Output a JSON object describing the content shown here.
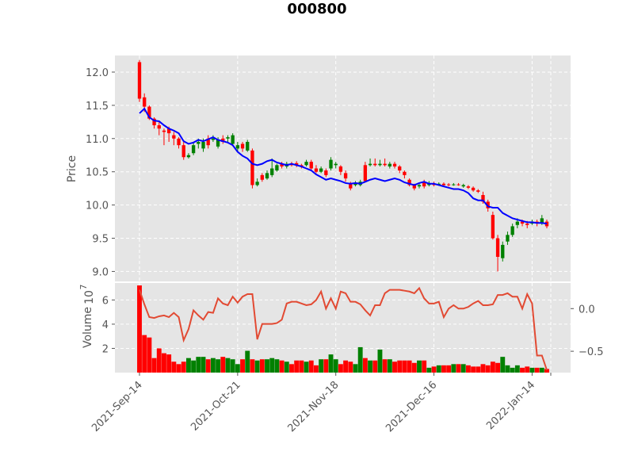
{
  "chart_data": {
    "title": "000800",
    "type": "candlestick",
    "grid": true,
    "price_panel": {
      "ylabel": "Price",
      "ylim": [
        8.85,
        12.25
      ],
      "yticks": [
        9.0,
        9.5,
        10.0,
        10.5,
        11.0,
        11.5,
        12.0
      ],
      "ytick_labels": [
        "9.0",
        "9.5",
        "10.0",
        "10.5",
        "11.0",
        "11.5",
        "12.0"
      ],
      "series": [
        {
          "values": [
            [
              11.6,
              12.15,
              11.55,
              12.18
            ],
            [
              11.48,
              11.62,
              11.4,
              11.68
            ],
            [
              11.3,
              11.48,
              11.28,
              11.5
            ],
            [
              11.2,
              11.3,
              11.15,
              11.32
            ],
            [
              11.15,
              11.2,
              11.05,
              11.25
            ],
            [
              11.1,
              11.12,
              10.9,
              11.15
            ],
            [
              11.08,
              11.15,
              10.95,
              11.18
            ],
            [
              11.0,
              11.05,
              10.9,
              11.1
            ],
            [
              10.9,
              11.0,
              10.85,
              11.02
            ],
            [
              10.72,
              10.9,
              10.68,
              10.95
            ],
            [
              10.75,
              10.72,
              10.7,
              10.78
            ],
            [
              10.9,
              10.78,
              10.75,
              10.95
            ],
            [
              10.95,
              10.92,
              10.85,
              11.0
            ],
            [
              10.95,
              10.85,
              10.8,
              11.0
            ],
            [
              10.9,
              11.0,
              10.85,
              11.05
            ],
            [
              11.0,
              10.98,
              10.95,
              11.05
            ],
            [
              10.98,
              10.88,
              10.85,
              11.02
            ],
            [
              10.95,
              11.0,
              10.92,
              11.05
            ],
            [
              11.02,
              11.0,
              10.95,
              11.05
            ],
            [
              11.05,
              10.92,
              10.9,
              11.08
            ],
            [
              10.9,
              10.85,
              10.8,
              10.95
            ],
            [
              10.85,
              10.92,
              10.8,
              10.95
            ],
            [
              10.95,
              10.82,
              10.8,
              10.98
            ],
            [
              10.3,
              10.82,
              10.25,
              10.85
            ],
            [
              10.35,
              10.3,
              10.28,
              10.4
            ],
            [
              10.38,
              10.45,
              10.35,
              10.48
            ],
            [
              10.48,
              10.4,
              10.38,
              10.52
            ],
            [
              10.55,
              10.45,
              10.42,
              10.7
            ],
            [
              10.6,
              10.52,
              10.5,
              10.62
            ],
            [
              10.58,
              10.62,
              10.55,
              10.65
            ],
            [
              10.62,
              10.58,
              10.55,
              10.65
            ],
            [
              10.6,
              10.62,
              10.58,
              10.65
            ],
            [
              10.6,
              10.63,
              10.57,
              10.66
            ],
            [
              10.58,
              10.6,
              10.55,
              10.62
            ],
            [
              10.65,
              10.6,
              10.58,
              10.68
            ],
            [
              10.55,
              10.65,
              10.52,
              10.68
            ],
            [
              10.5,
              10.55,
              10.48,
              10.6
            ],
            [
              10.55,
              10.5,
              10.48,
              10.58
            ],
            [
              10.45,
              10.52,
              10.42,
              10.55
            ],
            [
              10.68,
              10.55,
              10.52,
              10.72
            ],
            [
              10.62,
              10.6,
              10.55,
              10.65
            ],
            [
              10.5,
              10.58,
              10.45,
              10.6
            ],
            [
              10.4,
              10.48,
              10.35,
              10.52
            ],
            [
              10.25,
              10.32,
              10.22,
              10.35
            ],
            [
              10.32,
              10.3,
              10.28,
              10.36
            ],
            [
              10.35,
              10.3,
              10.28,
              10.38
            ],
            [
              10.36,
              10.6,
              10.35,
              10.65
            ],
            [
              10.62,
              10.6,
              10.58,
              10.7
            ],
            [
              10.6,
              10.62,
              10.58,
              10.7
            ],
            [
              10.62,
              10.6,
              10.58,
              10.68
            ],
            [
              10.6,
              10.62,
              10.58,
              10.7
            ],
            [
              10.62,
              10.58,
              10.55,
              10.65
            ],
            [
              10.58,
              10.62,
              10.55,
              10.65
            ],
            [
              10.52,
              10.58,
              10.48,
              10.6
            ],
            [
              10.45,
              10.5,
              10.4,
              10.52
            ],
            [
              10.3,
              10.38,
              10.28,
              10.4
            ],
            [
              10.25,
              10.3,
              10.22,
              10.32
            ],
            [
              10.3,
              10.28,
              10.25,
              10.34
            ],
            [
              10.28,
              10.35,
              10.25,
              10.38
            ],
            [
              10.32,
              10.3,
              10.28,
              10.36
            ],
            [
              10.3,
              10.32,
              10.28,
              10.35
            ],
            [
              10.32,
              10.31,
              10.29,
              10.34
            ],
            [
              10.3,
              10.32,
              10.28,
              10.34
            ],
            [
              10.3,
              10.31,
              10.28,
              10.33
            ],
            [
              10.31,
              10.3,
              10.29,
              10.33
            ],
            [
              10.3,
              10.31,
              10.29,
              10.33
            ],
            [
              10.3,
              10.28,
              10.26,
              10.32
            ],
            [
              10.26,
              10.28,
              10.24,
              10.3
            ],
            [
              10.22,
              10.26,
              10.2,
              10.28
            ],
            [
              10.2,
              10.22,
              10.18,
              10.24
            ],
            [
              10.05,
              10.15,
              10.02,
              10.2
            ],
            [
              9.95,
              10.05,
              9.9,
              10.08
            ],
            [
              9.5,
              9.85,
              9.48,
              9.9
            ],
            [
              9.22,
              9.5,
              9.0,
              9.55
            ],
            [
              9.4,
              9.2,
              9.15,
              9.45
            ],
            [
              9.55,
              9.45,
              9.4,
              9.6
            ],
            [
              9.68,
              9.55,
              9.52,
              9.72
            ],
            [
              9.75,
              9.7,
              9.65,
              9.8
            ],
            [
              9.72,
              9.75,
              9.68,
              9.78
            ],
            [
              9.7,
              9.72,
              9.65,
              9.76
            ],
            [
              9.75,
              9.72,
              9.7,
              9.78
            ],
            [
              9.72,
              9.75,
              9.68,
              9.78
            ],
            [
              9.8,
              9.72,
              9.7,
              9.85
            ],
            [
              9.68,
              9.75,
              9.65,
              9.78
            ]
          ]
        },
        {
          "values": [
            11.38,
            11.45,
            11.32,
            11.27,
            11.26,
            11.2,
            11.15,
            11.12,
            11.08,
            10.96,
            10.92,
            10.94,
            10.98,
            10.96,
            10.99,
            11.02,
            10.98,
            10.96,
            10.94,
            10.9,
            10.8,
            10.74,
            10.7,
            10.62,
            10.6,
            10.62,
            10.66,
            10.68,
            10.64,
            10.62,
            10.6,
            10.62,
            10.6,
            10.58,
            10.55,
            10.52,
            10.46,
            10.42,
            10.38,
            10.4,
            10.38,
            10.36,
            10.33,
            10.32,
            10.33,
            10.32,
            10.35,
            10.38,
            10.4,
            10.38,
            10.36,
            10.38,
            10.4,
            10.38,
            10.34,
            10.32,
            10.3,
            10.33,
            10.35,
            10.32,
            10.32,
            10.3,
            10.28,
            10.26,
            10.24,
            10.24,
            10.22,
            10.18,
            10.1,
            10.07,
            10.07,
            9.98,
            9.96,
            9.96,
            9.88,
            9.84,
            9.8,
            9.78,
            9.76,
            9.74,
            9.74,
            9.73,
            9.73,
            9.72
          ]
        }
      ]
    },
    "volume_panel": {
      "ylabel": "Volume",
      "scale_label": "10",
      "scale_exponent": "7",
      "ylim": [
        0,
        7.4
      ],
      "yticks": [
        2,
        4,
        6
      ],
      "ytick_labels": [
        "2",
        "4",
        "6"
      ],
      "series": [
        {
          "values": [
            7.2,
            3.1,
            2.9,
            1.2,
            2.0,
            1.6,
            1.5,
            0.9,
            0.7,
            0.9,
            1.2,
            1.0,
            1.3,
            1.3,
            1.1,
            1.2,
            1.1,
            1.3,
            1.2,
            1.1,
            0.7,
            1.1,
            1.8,
            1.1,
            1.0,
            1.1,
            1.1,
            1.2,
            1.1,
            1.0,
            0.9,
            0.7,
            1.0,
            1.0,
            0.9,
            1.0,
            0.6,
            1.1,
            1.1,
            1.5,
            1.1,
            0.7,
            1.0,
            0.9,
            0.7,
            2.1,
            1.2,
            1.0,
            1.0,
            1.9,
            1.1,
            1.1,
            0.9,
            1.0,
            1.0,
            1.0,
            0.8,
            1.0,
            1.0,
            0.4,
            0.5,
            0.6,
            0.6,
            0.6,
            0.7,
            0.7,
            0.7,
            0.6,
            0.5,
            0.5,
            0.7,
            0.6,
            0.9,
            0.8,
            1.3,
            0.6,
            0.4,
            0.6,
            0.4,
            0.5,
            0.4,
            0.4,
            0.4,
            0.3
          ]
        },
        {
          "values": [
            0.22,
            0.05,
            -0.1,
            -0.11,
            -0.09,
            -0.08,
            -0.1,
            -0.05,
            -0.1,
            -0.37,
            -0.24,
            -0.02,
            -0.08,
            -0.13,
            -0.04,
            -0.05,
            0.12,
            0.06,
            0.04,
            0.14,
            0.07,
            0.14,
            0.17,
            0.17,
            -0.36,
            -0.18,
            -0.18,
            -0.18,
            -0.17,
            -0.13,
            0.06,
            0.08,
            0.08,
            0.06,
            0.04,
            0.05,
            0.1,
            0.2,
            0.0,
            0.12,
            0.0,
            0.2,
            0.18,
            0.08,
            0.08,
            0.05,
            -0.02,
            -0.08,
            0.04,
            0.04,
            0.18,
            0.22,
            0.22,
            0.22,
            0.21,
            0.2,
            0.18,
            0.24,
            0.12,
            0.06,
            0.06,
            0.08,
            -0.1,
            0.0,
            0.04,
            0.0,
            0.0,
            0.02,
            0.06,
            0.09,
            0.04,
            0.04,
            0.05,
            0.16,
            0.16,
            0.18,
            0.14,
            0.14,
            0.0,
            0.17,
            0.06,
            -0.55,
            -0.55,
            -0.72
          ]
        }
      ],
      "secondary_ylim": [
        -0.75,
        0.3
      ],
      "secondary_yticks": [
        0.0,
        -0.5
      ],
      "secondary_ytick_labels": [
        "0.0",
        "−0.5"
      ]
    },
    "x_tick_labels": [
      "2021-Sep-14",
      "2021-Oct-21",
      "2021-Nov-18",
      "2021-Dec-16",
      "2022-Jan-14"
    ],
    "colors": {
      "up": "#ff0000",
      "down": "#008000",
      "ma": "#0000ff",
      "line": "#e24a33",
      "grid": "#ffffff",
      "panel_bg": "#e5e5e5",
      "text": "#555555"
    }
  }
}
